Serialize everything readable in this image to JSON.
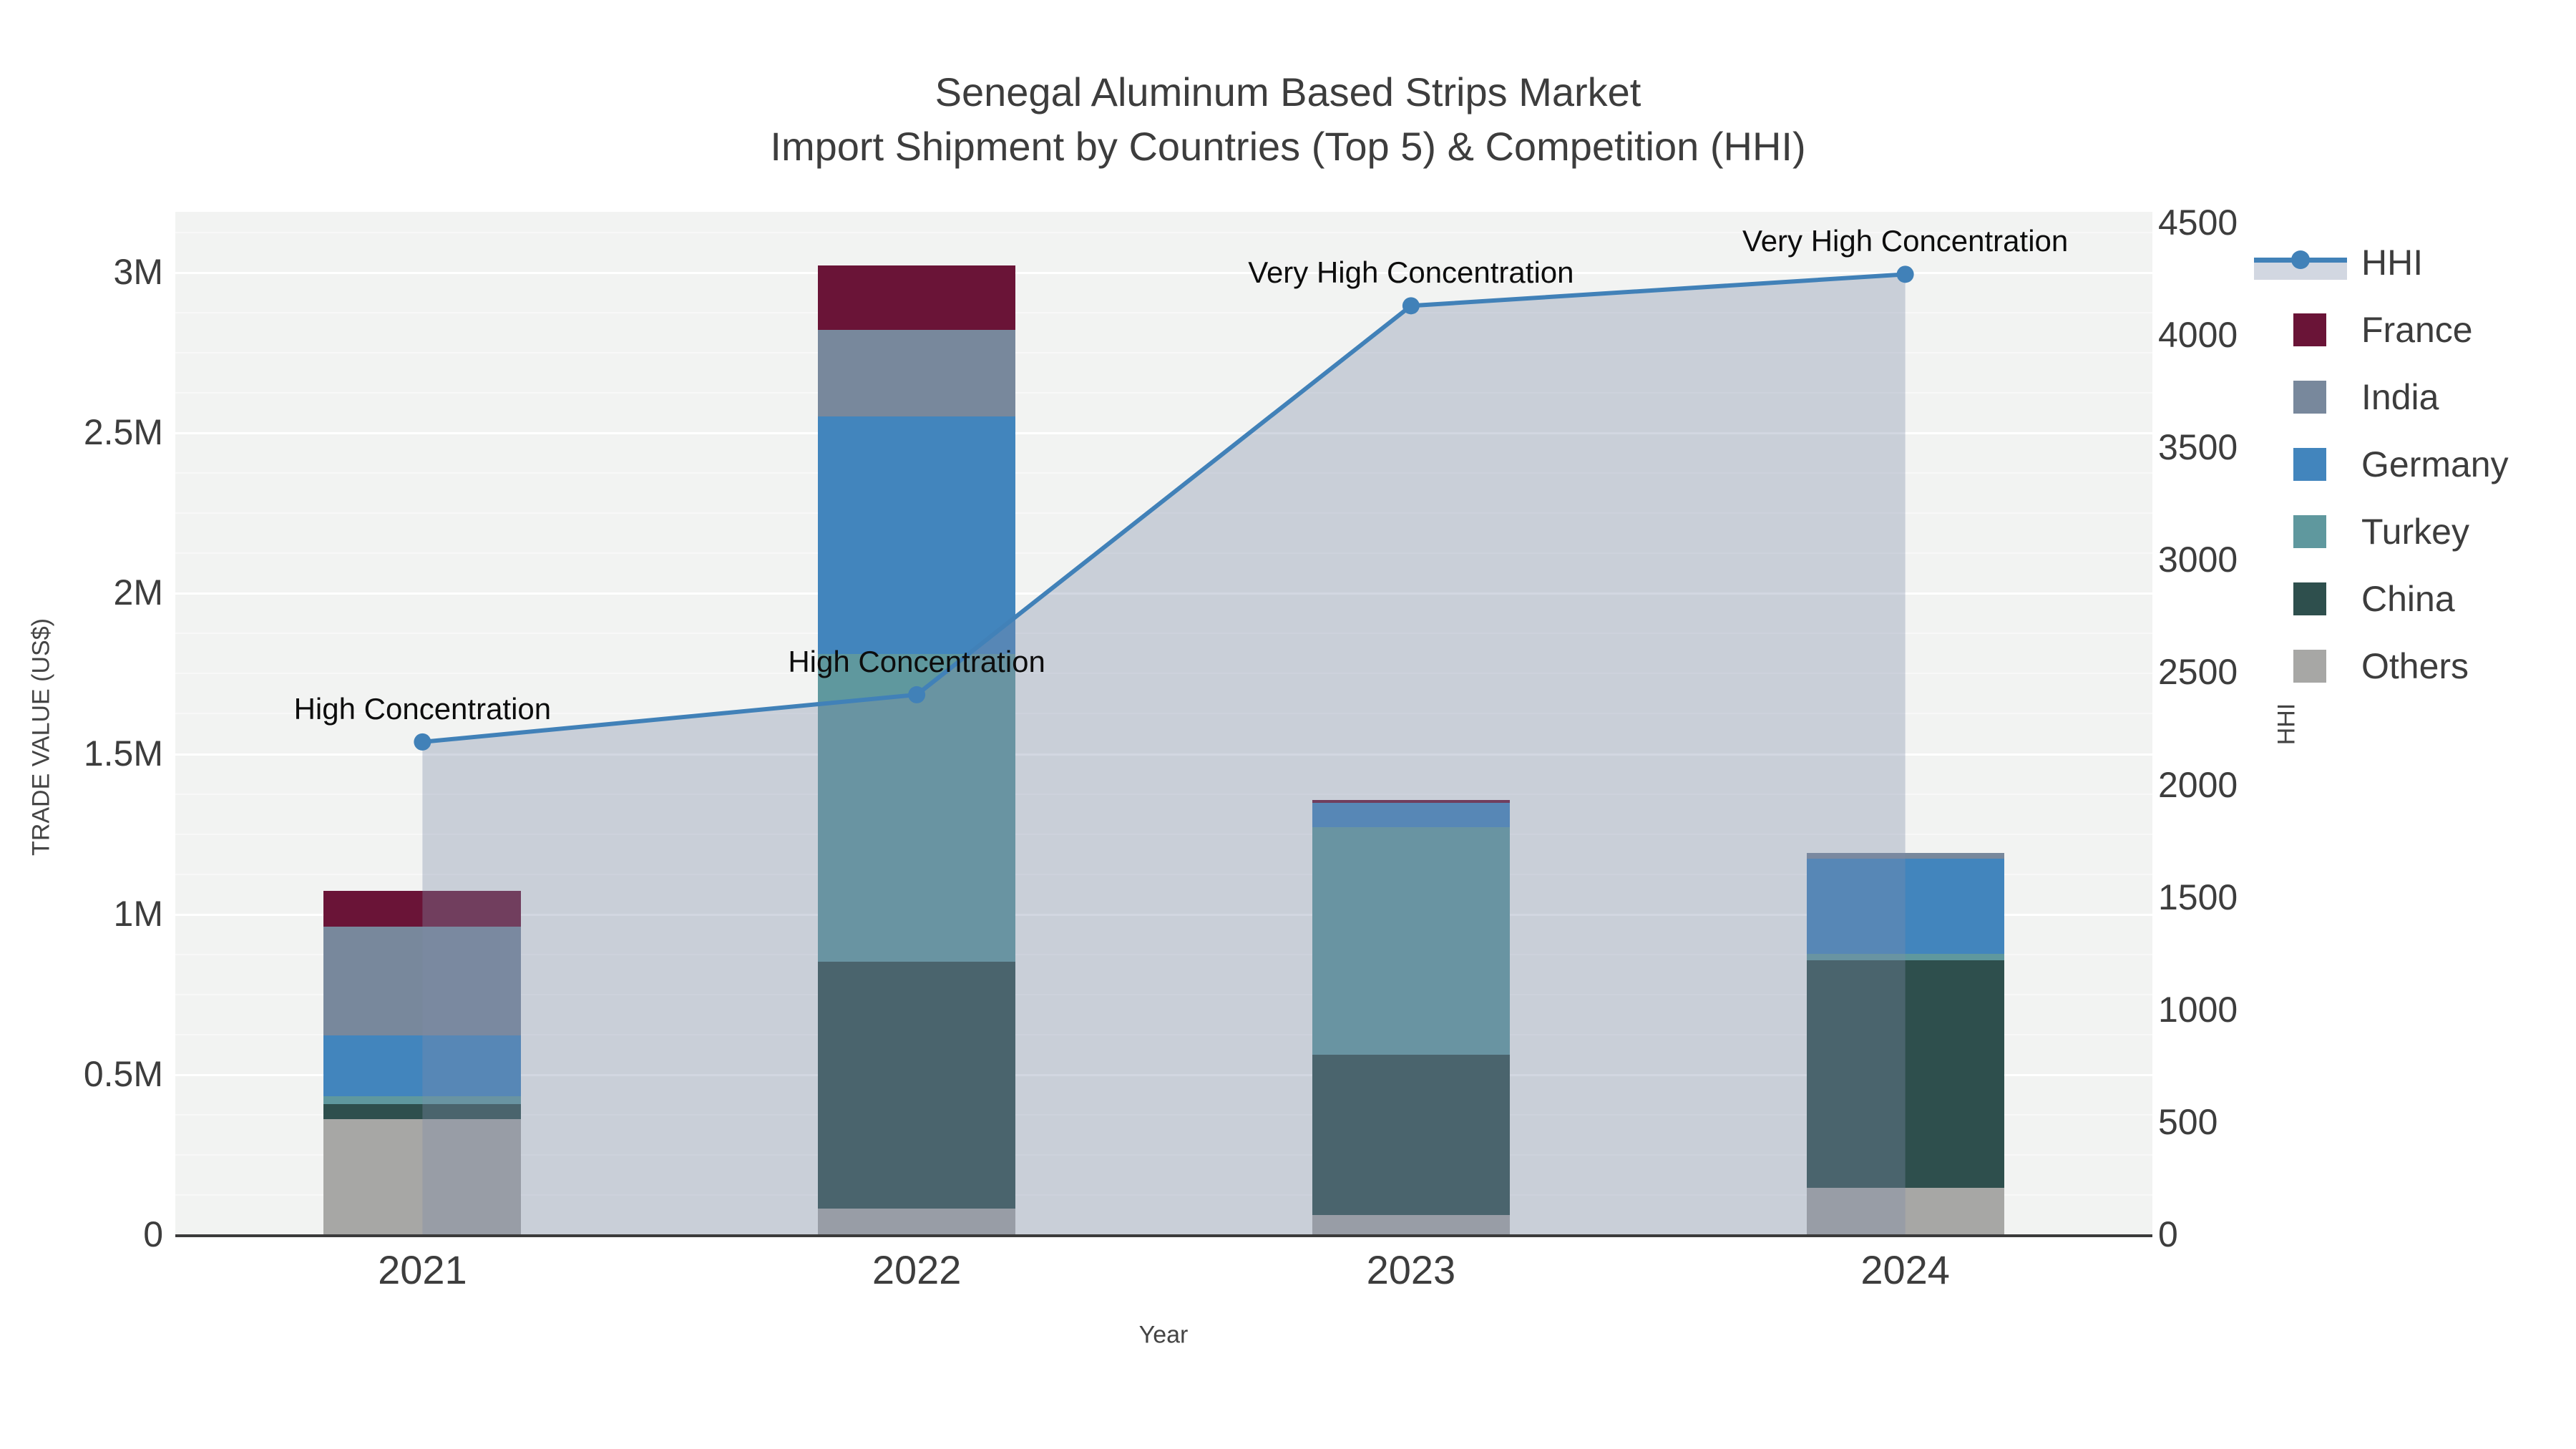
{
  "title": {
    "line1": "Senegal Aluminum Based Strips Market",
    "line2": "Import Shipment by Countries (Top 5) & Competition (HHI)"
  },
  "axes": {
    "x_title": "Year",
    "y_title": "TRADE VALUE (US$)",
    "y2_title": "HHI",
    "x_categories": [
      "2021",
      "2022",
      "2023",
      "2024"
    ],
    "y_ticks": [
      {
        "value": 0,
        "label": "0"
      },
      {
        "value": 0.5,
        "label": "0.5M"
      },
      {
        "value": 1,
        "label": "1M"
      },
      {
        "value": 1.5,
        "label": "1.5M"
      },
      {
        "value": 2,
        "label": "2M"
      },
      {
        "value": 2.5,
        "label": "2.5M"
      },
      {
        "value": 3,
        "label": "3M"
      }
    ],
    "y2_ticks": [
      {
        "value": 0,
        "label": "0"
      },
      {
        "value": 500,
        "label": "500"
      },
      {
        "value": 1000,
        "label": "1000"
      },
      {
        "value": 1500,
        "label": "1500"
      },
      {
        "value": 2000,
        "label": "2000"
      },
      {
        "value": 2500,
        "label": "2500"
      },
      {
        "value": 3000,
        "label": "3000"
      },
      {
        "value": 3500,
        "label": "3500"
      },
      {
        "value": 4000,
        "label": "4000"
      },
      {
        "value": 4500,
        "label": "4500"
      }
    ]
  },
  "legend": {
    "items": [
      {
        "name": "HHI",
        "type": "line",
        "color": "#4181b8"
      },
      {
        "name": "France",
        "type": "swatch",
        "color": "#6a1437"
      },
      {
        "name": "India",
        "type": "swatch",
        "color": "#78889c"
      },
      {
        "name": "Germany",
        "type": "swatch",
        "color": "#4285bd"
      },
      {
        "name": "Turkey",
        "type": "swatch",
        "color": "#5f989e"
      },
      {
        "name": "China",
        "type": "swatch",
        "color": "#2e4f4d"
      },
      {
        "name": "Others",
        "type": "swatch",
        "color": "#a7a7a5"
      }
    ]
  },
  "annotations": [
    {
      "year": "2021",
      "text": "High Concentration"
    },
    {
      "year": "2022",
      "text": "High Concentration"
    },
    {
      "year": "2023",
      "text": "Very High Concentration"
    },
    {
      "year": "2024",
      "text": "Very High Concentration"
    }
  ],
  "colors": {
    "plot_background": "#f2f3f2",
    "hhi_line": "#4181b8",
    "hhi_area_fill": "rgba(125,140,170,0.35)",
    "axis_line": "#3b3b3b",
    "tick_text": "#3d3d3d",
    "title_text": "#3d3d3d"
  },
  "chart_data": {
    "type": "bar",
    "subtype": "stacked-bars-with-line",
    "categories": [
      "2021",
      "2022",
      "2023",
      "2024"
    ],
    "bar_units": "US$ millions",
    "stack_order_bottom_to_top": [
      "Others",
      "China",
      "Turkey",
      "Germany",
      "India",
      "France"
    ],
    "series": [
      {
        "name": "France",
        "color": "#6a1437",
        "values": [
          0.11,
          0.2,
          0.01,
          0
        ]
      },
      {
        "name": "India",
        "color": "#78889c",
        "values": [
          0.34,
          0.27,
          0,
          0.02
        ]
      },
      {
        "name": "Germany",
        "color": "#4285bd",
        "values": [
          0.19,
          0.74,
          0.075,
          0.295
        ]
      },
      {
        "name": "Turkey",
        "color": "#5f989e",
        "values": [
          0.025,
          0.96,
          0.71,
          0.02
        ]
      },
      {
        "name": "China",
        "color": "#2e4f4d",
        "values": [
          0.045,
          0.77,
          0.5,
          0.71
        ]
      },
      {
        "name": "Others",
        "color": "#a7a7a5",
        "values": [
          0.36,
          0.08,
          0.06,
          0.145
        ]
      }
    ],
    "bar_totals": [
      1.07,
      3.02,
      1.355,
      1.19
    ],
    "line_series": {
      "name": "HHI",
      "axis": "right",
      "values": [
        2190,
        2400,
        4130,
        4270
      ],
      "has_area_fill": true
    },
    "title": "Senegal Aluminum Based Strips Market — Import Shipment by Countries (Top 5) & Competition (HHI)",
    "xlabel": "Year",
    "ylabel": "TRADE VALUE (US$)",
    "y2label": "HHI",
    "ylim": [
      0,
      3.1875
    ],
    "y2lim": [
      0,
      4548
    ],
    "grid": "on",
    "legend_position": "right"
  }
}
